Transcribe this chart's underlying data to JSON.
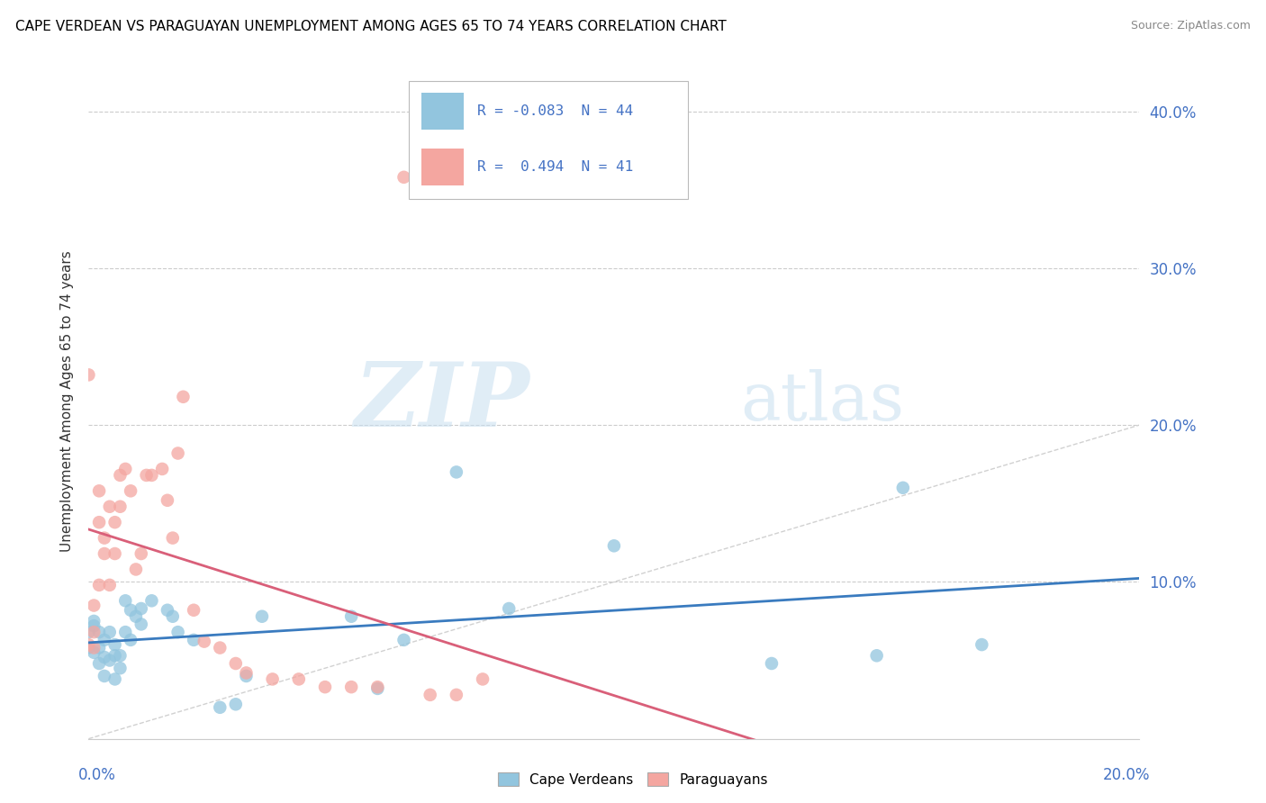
{
  "title": "CAPE VERDEAN VS PARAGUAYAN UNEMPLOYMENT AMONG AGES 65 TO 74 YEARS CORRELATION CHART",
  "source": "Source: ZipAtlas.com",
  "ylabel": "Unemployment Among Ages 65 to 74 years",
  "yticks": [
    0.0,
    0.1,
    0.2,
    0.3,
    0.4
  ],
  "ytick_labels": [
    "",
    "10.0%",
    "20.0%",
    "30.0%",
    "40.0%"
  ],
  "xlim": [
    0.0,
    0.2
  ],
  "ylim": [
    0.0,
    0.43
  ],
  "legend_r1": "R = -0.083  N = 44",
  "legend_r2": "R =  0.494  N = 41",
  "color_blue": "#92c5de",
  "color_pink": "#f4a6a0",
  "color_blue_line": "#3a7bbf",
  "color_pink_line": "#d95f79",
  "watermark_zip": "ZIP",
  "watermark_atlas": "atlas",
  "cape_verdean_x": [
    0.0,
    0.0,
    0.001,
    0.001,
    0.001,
    0.002,
    0.002,
    0.002,
    0.003,
    0.003,
    0.003,
    0.004,
    0.004,
    0.005,
    0.005,
    0.005,
    0.006,
    0.006,
    0.007,
    0.007,
    0.008,
    0.008,
    0.009,
    0.01,
    0.01,
    0.012,
    0.015,
    0.016,
    0.017,
    0.02,
    0.025,
    0.028,
    0.03,
    0.033,
    0.05,
    0.055,
    0.06,
    0.07,
    0.08,
    0.1,
    0.13,
    0.15,
    0.155,
    0.17
  ],
  "cape_verdean_y": [
    0.068,
    0.058,
    0.075,
    0.072,
    0.055,
    0.068,
    0.058,
    0.048,
    0.063,
    0.052,
    0.04,
    0.068,
    0.05,
    0.06,
    0.053,
    0.038,
    0.053,
    0.045,
    0.088,
    0.068,
    0.082,
    0.063,
    0.078,
    0.083,
    0.073,
    0.088,
    0.082,
    0.078,
    0.068,
    0.063,
    0.02,
    0.022,
    0.04,
    0.078,
    0.078,
    0.032,
    0.063,
    0.17,
    0.083,
    0.123,
    0.048,
    0.053,
    0.16,
    0.06
  ],
  "paraguayan_x": [
    0.0,
    0.0,
    0.001,
    0.001,
    0.001,
    0.002,
    0.002,
    0.002,
    0.003,
    0.003,
    0.004,
    0.004,
    0.005,
    0.005,
    0.006,
    0.006,
    0.007,
    0.008,
    0.009,
    0.01,
    0.011,
    0.012,
    0.014,
    0.015,
    0.016,
    0.017,
    0.018,
    0.02,
    0.022,
    0.025,
    0.028,
    0.03,
    0.035,
    0.04,
    0.045,
    0.05,
    0.055,
    0.06,
    0.065,
    0.07,
    0.075
  ],
  "paraguayan_y": [
    0.232,
    0.06,
    0.085,
    0.068,
    0.058,
    0.158,
    0.138,
    0.098,
    0.128,
    0.118,
    0.148,
    0.098,
    0.138,
    0.118,
    0.168,
    0.148,
    0.172,
    0.158,
    0.108,
    0.118,
    0.168,
    0.168,
    0.172,
    0.152,
    0.128,
    0.182,
    0.218,
    0.082,
    0.062,
    0.058,
    0.048,
    0.042,
    0.038,
    0.038,
    0.033,
    0.033,
    0.033,
    0.358,
    0.028,
    0.028,
    0.038
  ]
}
